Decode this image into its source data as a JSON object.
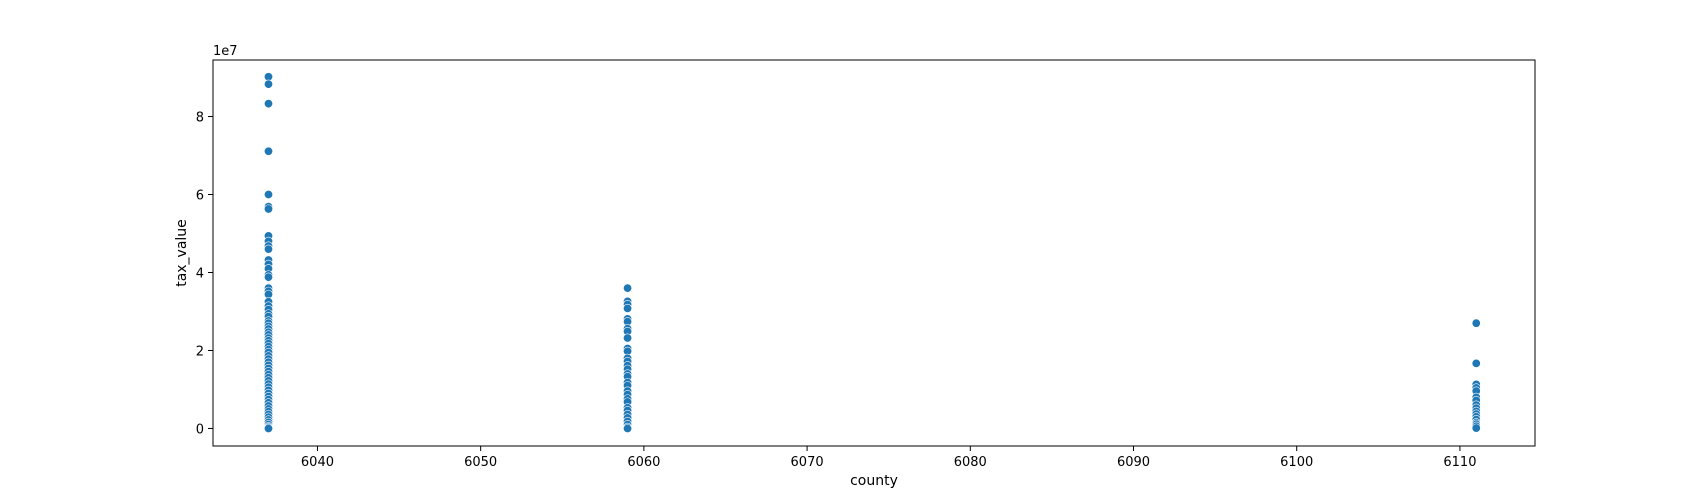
{
  "chart_data": {
    "type": "scatter",
    "title": "",
    "xlabel": "county",
    "ylabel": "tax_value",
    "y_offset_text": "1e7",
    "xlim": [
      6033.6,
      6114.6
    ],
    "ylim": [
      -4500000,
      94500000
    ],
    "x_ticks": [
      6040,
      6050,
      6060,
      6070,
      6080,
      6090,
      6100,
      6110
    ],
    "x_tick_labels": [
      "6040",
      "6050",
      "6060",
      "6070",
      "6080",
      "6090",
      "6100",
      "6110"
    ],
    "y_ticks": [
      0,
      20000000,
      40000000,
      60000000,
      80000000
    ],
    "y_tick_labels": [
      "0",
      "2",
      "4",
      "6",
      "8"
    ],
    "grid": false,
    "legend": "none",
    "marker_color": "#1f77b4",
    "series": [
      {
        "points": [
          {
            "x": 6037,
            "y": 90200000
          },
          {
            "x": 6037,
            "y": 88300000
          },
          {
            "x": 6037,
            "y": 83300000
          },
          {
            "x": 6037,
            "y": 71100000
          },
          {
            "x": 6037,
            "y": 60000000
          },
          {
            "x": 6037,
            "y": 56900000
          },
          {
            "x": 6037,
            "y": 56300000
          },
          {
            "x": 6037,
            "y": 49400000
          },
          {
            "x": 6037,
            "y": 48000000
          },
          {
            "x": 6037,
            "y": 46800000
          },
          {
            "x": 6037,
            "y": 46000000
          },
          {
            "x": 6037,
            "y": 43200000
          },
          {
            "x": 6037,
            "y": 42100000
          },
          {
            "x": 6037,
            "y": 41000000
          },
          {
            "x": 6037,
            "y": 39400000
          },
          {
            "x": 6037,
            "y": 38800000
          },
          {
            "x": 6037,
            "y": 36000000
          },
          {
            "x": 6037,
            "y": 35200000
          },
          {
            "x": 6037,
            "y": 34400000
          },
          {
            "x": 6037,
            "y": 32500000
          },
          {
            "x": 6037,
            "y": 31400000
          },
          {
            "x": 6037,
            "y": 30500000
          },
          {
            "x": 6037,
            "y": 29400000
          },
          {
            "x": 6037,
            "y": 28700000
          },
          {
            "x": 6037,
            "y": 27600000
          },
          {
            "x": 6037,
            "y": 27000000
          },
          {
            "x": 6037,
            "y": 26200000
          },
          {
            "x": 6037,
            "y": 25500000
          },
          {
            "x": 6037,
            "y": 24700000
          },
          {
            "x": 6037,
            "y": 24000000
          },
          {
            "x": 6037,
            "y": 23200000
          },
          {
            "x": 6037,
            "y": 22500000
          },
          {
            "x": 6037,
            "y": 21800000
          },
          {
            "x": 6037,
            "y": 21000000
          },
          {
            "x": 6037,
            "y": 20200000
          },
          {
            "x": 6037,
            "y": 19500000
          },
          {
            "x": 6037,
            "y": 18600000
          },
          {
            "x": 6037,
            "y": 17800000
          },
          {
            "x": 6037,
            "y": 17000000
          },
          {
            "x": 6037,
            "y": 16200000
          },
          {
            "x": 6037,
            "y": 15400000
          },
          {
            "x": 6037,
            "y": 14600000
          },
          {
            "x": 6037,
            "y": 13800000
          },
          {
            "x": 6037,
            "y": 13000000
          },
          {
            "x": 6037,
            "y": 12200000
          },
          {
            "x": 6037,
            "y": 11400000
          },
          {
            "x": 6037,
            "y": 10600000
          },
          {
            "x": 6037,
            "y": 9800000
          },
          {
            "x": 6037,
            "y": 9000000
          },
          {
            "x": 6037,
            "y": 8200000
          },
          {
            "x": 6037,
            "y": 7400000
          },
          {
            "x": 6037,
            "y": 6600000
          },
          {
            "x": 6037,
            "y": 5800000
          },
          {
            "x": 6037,
            "y": 5000000
          },
          {
            "x": 6037,
            "y": 4300000
          },
          {
            "x": 6037,
            "y": 3600000
          },
          {
            "x": 6037,
            "y": 2900000
          },
          {
            "x": 6037,
            "y": 2200000
          },
          {
            "x": 6037,
            "y": 1600000
          },
          {
            "x": 6037,
            "y": 1000000
          },
          {
            "x": 6037,
            "y": 500000
          },
          {
            "x": 6037,
            "y": 200000
          },
          {
            "x": 6037,
            "y": 0
          },
          {
            "x": 6059,
            "y": 36000000
          },
          {
            "x": 6059,
            "y": 32600000
          },
          {
            "x": 6059,
            "y": 31800000
          },
          {
            "x": 6059,
            "y": 30800000
          },
          {
            "x": 6059,
            "y": 28100000
          },
          {
            "x": 6059,
            "y": 27400000
          },
          {
            "x": 6059,
            "y": 25600000
          },
          {
            "x": 6059,
            "y": 24900000
          },
          {
            "x": 6059,
            "y": 23200000
          },
          {
            "x": 6059,
            "y": 20500000
          },
          {
            "x": 6059,
            "y": 19800000
          },
          {
            "x": 6059,
            "y": 18000000
          },
          {
            "x": 6059,
            "y": 17200000
          },
          {
            "x": 6059,
            "y": 16100000
          },
          {
            "x": 6059,
            "y": 15200000
          },
          {
            "x": 6059,
            "y": 14000000
          },
          {
            "x": 6059,
            "y": 13300000
          },
          {
            "x": 6059,
            "y": 11800000
          },
          {
            "x": 6059,
            "y": 11000000
          },
          {
            "x": 6059,
            "y": 9600000
          },
          {
            "x": 6059,
            "y": 8700000
          },
          {
            "x": 6059,
            "y": 7600000
          },
          {
            "x": 6059,
            "y": 6800000
          },
          {
            "x": 6059,
            "y": 5300000
          },
          {
            "x": 6059,
            "y": 4600000
          },
          {
            "x": 6059,
            "y": 3600000
          },
          {
            "x": 6059,
            "y": 2700000
          },
          {
            "x": 6059,
            "y": 1800000
          },
          {
            "x": 6059,
            "y": 1000000
          },
          {
            "x": 6059,
            "y": 300000
          },
          {
            "x": 6059,
            "y": 0
          },
          {
            "x": 6111,
            "y": 27000000
          },
          {
            "x": 6111,
            "y": 16700000
          },
          {
            "x": 6111,
            "y": 11300000
          },
          {
            "x": 6111,
            "y": 10400000
          },
          {
            "x": 6111,
            "y": 9600000
          },
          {
            "x": 6111,
            "y": 8000000
          },
          {
            "x": 6111,
            "y": 7200000
          },
          {
            "x": 6111,
            "y": 6000000
          },
          {
            "x": 6111,
            "y": 5200000
          },
          {
            "x": 6111,
            "y": 4400000
          },
          {
            "x": 6111,
            "y": 3700000
          },
          {
            "x": 6111,
            "y": 3000000
          },
          {
            "x": 6111,
            "y": 2300000
          },
          {
            "x": 6111,
            "y": 1500000
          },
          {
            "x": 6111,
            "y": 1100000
          },
          {
            "x": 6111,
            "y": 600000
          },
          {
            "x": 6111,
            "y": 100000
          }
        ]
      }
    ]
  }
}
